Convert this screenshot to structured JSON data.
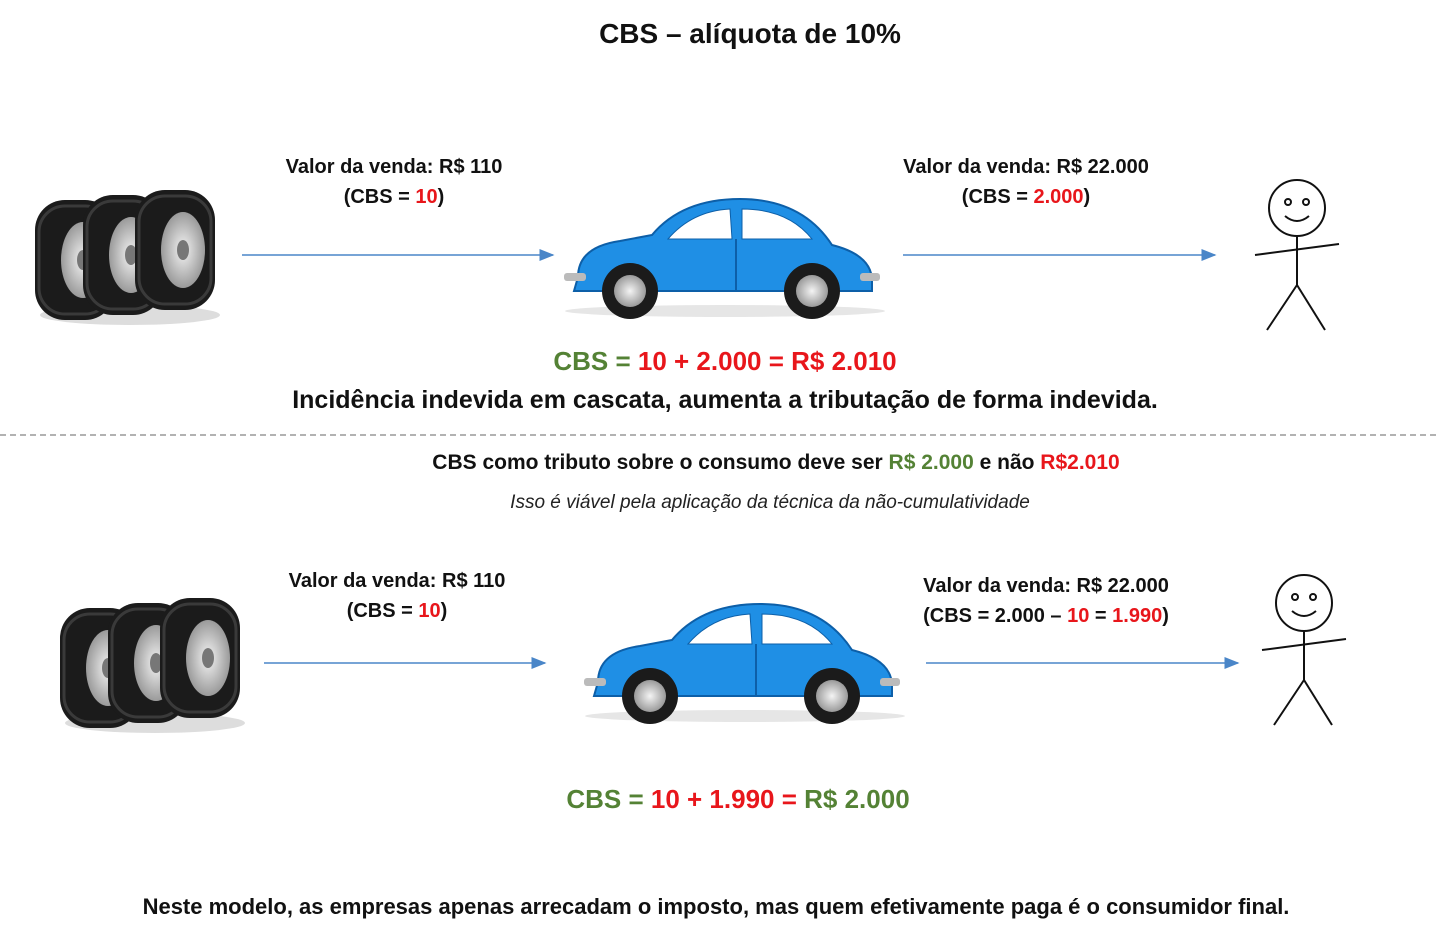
{
  "title": "CBS – alíquota de 10%",
  "scenario_1": {
    "sale_1": {
      "label": "Valor da venda: R$ 110",
      "tax": [
        "(CBS = ",
        "10",
        ")"
      ]
    },
    "sale_2": {
      "label": "Valor da venda: R$ 22.000",
      "tax": [
        "(CBS = ",
        "2.000",
        ")"
      ]
    },
    "formula": [
      "CBS = ",
      "10 + 2.000 = R$ 2.010"
    ],
    "note": "Incidência indevida em cascata, aumenta a tributação de forma indevida."
  },
  "comparison": [
    "CBS como tributo sobre o consumo deve ser ",
    "R$ 2.000",
    " e não ",
    "R$2.010"
  ],
  "comparison_note": "Isso é viável pela aplicação da técnica da não-cumulatividade",
  "scenario_2": {
    "sale_1": {
      "label": "Valor da venda: R$ 110",
      "tax": [
        "(CBS = ",
        "10",
        ")"
      ]
    },
    "sale_2": {
      "label": "Valor da venda: R$ 22.000",
      "tax": [
        "(CBS = 2.000 – ",
        "10",
        " = ",
        "1.990",
        ")"
      ]
    },
    "formula": [
      "CBS = ",
      "10 + 1.990 =",
      " R$ 2.000"
    ]
  },
  "footer": "Neste modelo, as empresas apenas arrecadam o imposto, mas quem efetivamente paga é o consumidor final."
}
